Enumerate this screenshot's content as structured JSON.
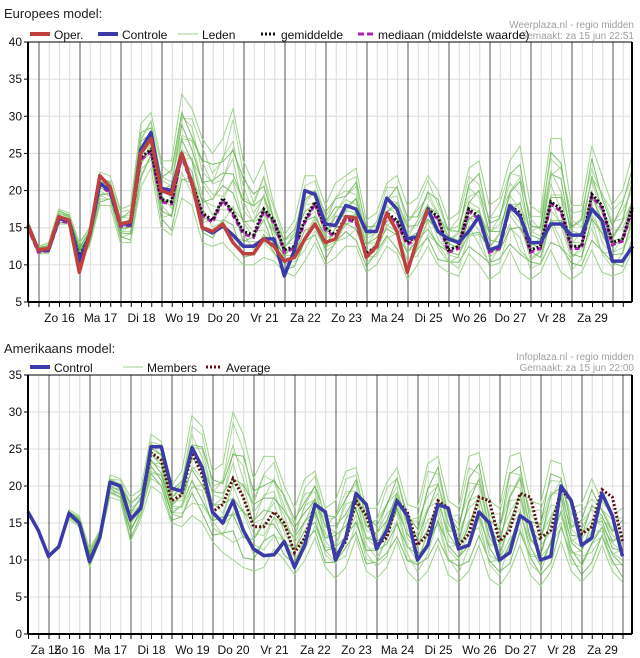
{
  "chart_data": [
    {
      "type": "line",
      "title": "Europees model:",
      "source": "Weerplaza.nl - regio midden",
      "made": "Gemaakt: za 15 jun 22:51",
      "ylim": [
        5,
        40
      ],
      "yticks": [
        5,
        10,
        15,
        20,
        25,
        30,
        35,
        40
      ],
      "xlabels": [
        "Zo 16",
        "Ma 17",
        "Di 18",
        "Wo 19",
        "Do 20",
        "Vr 21",
        "Za 22",
        "Zo 23",
        "Ma 24",
        "Di 25",
        "Wo 26",
        "Do 27",
        "Vr 28",
        "Za 29"
      ],
      "x_step_hours": 6,
      "grid": true,
      "legend": [
        {
          "name": "Oper.",
          "color": "#c04040",
          "style": "solid"
        },
        {
          "name": "Controle",
          "color": "#3a3aa8",
          "style": "solid"
        },
        {
          "name": "Leden",
          "color": "#9ecf8a",
          "style": "thin"
        },
        {
          "name": "gemiddelde",
          "color": "#111111",
          "style": "dotted"
        },
        {
          "name": "mediaan (middelste waarde)",
          "color": "#b020b0",
          "style": "dashed"
        }
      ],
      "series": [
        {
          "name": "Leden",
          "color": "#5fb040",
          "band": true,
          "low": [
            14.5,
            11.5,
            11.5,
            15.5,
            15.5,
            10.5,
            12.5,
            18,
            18,
            13,
            13,
            20.5,
            23,
            15,
            14,
            19,
            18,
            13,
            12.5,
            13,
            11.5,
            10,
            10,
            11,
            10.5,
            9,
            8.5,
            10.5,
            13,
            10,
            11,
            12.5,
            12.5,
            9,
            10,
            12.5,
            11.5,
            8,
            10,
            12.5,
            10,
            9,
            8.5,
            11.5,
            10,
            8,
            9,
            12,
            9,
            8,
            9,
            12,
            9,
            8,
            9,
            12,
            9,
            8.5,
            9,
            12
          ],
          "high": [
            16,
            12.5,
            13,
            17.5,
            17,
            13,
            15,
            22.5,
            22,
            17.5,
            18,
            29,
            30.5,
            24,
            24,
            33,
            31,
            27,
            25,
            27,
            31,
            24,
            21,
            24,
            18,
            14,
            16,
            22,
            22,
            18,
            21,
            22,
            23,
            16,
            17,
            21,
            22,
            18,
            19,
            22,
            20,
            16,
            17,
            23,
            24,
            18,
            19,
            24,
            26,
            18,
            17,
            27,
            27,
            18,
            18,
            26,
            22,
            18,
            20,
            25
          ]
        },
        {
          "name": "gemiddelde",
          "color": "#111111",
          "values": [
            15.3,
            12,
            12.2,
            16.2,
            16,
            11,
            14,
            21,
            20,
            15.5,
            15.6,
            24.5,
            25.5,
            18.8,
            18.5,
            25,
            21,
            17,
            16,
            19,
            17,
            14.5,
            14,
            17.5,
            16,
            12,
            12.5,
            16,
            18.5,
            15,
            14,
            16.5,
            16,
            11.5,
            12.5,
            17,
            16,
            13,
            14,
            17.5,
            16.5,
            12,
            12.5,
            17.5,
            16.5,
            12,
            12.5,
            18,
            17,
            12,
            12.5,
            18.5,
            17.5,
            12.5,
            12.5,
            19.5,
            18,
            13,
            13.5,
            18
          ]
        },
        {
          "name": "Controle",
          "color": "#3a3aa8",
          "values": [
            15.3,
            12,
            12,
            16.2,
            16,
            10.5,
            14,
            21,
            20,
            15.5,
            15.5,
            25.5,
            27.8,
            20.3,
            20,
            25,
            21,
            15,
            14.3,
            15.2,
            14,
            12.5,
            12.5,
            13.5,
            13.5,
            8.5,
            12,
            20,
            19.5,
            15.5,
            15.3,
            18,
            17.5,
            14.5,
            14.5,
            19,
            17.5,
            13.5,
            13.8,
            17.5,
            14.5,
            13.5,
            13,
            14.5,
            16.5,
            12,
            12.5,
            18,
            16.5,
            13,
            13,
            15.5,
            15.5,
            14,
            14,
            17.5,
            16,
            10.5,
            10.5,
            12.5
          ]
        },
        {
          "name": "Oper.",
          "color": "#c04040",
          "values": [
            15.3,
            12,
            12.2,
            16.5,
            16,
            9,
            14,
            22,
            20.5,
            15.5,
            15.8,
            25,
            27,
            20,
            19.5,
            25,
            21,
            15,
            14.5,
            15.5,
            13,
            11.5,
            11.5,
            13.5,
            12.5,
            10.5,
            11,
            13.5,
            15.5,
            13,
            13.5,
            16.5,
            16.3,
            11,
            12.5,
            17,
            14.5,
            9,
            13.5,
            17.5
          ]
        }
      ]
    },
    {
      "type": "line",
      "title": "Amerikaans model:",
      "source": "Infoplaza.nl - regio midden",
      "made": "Gemaakt: za 15 jun 22:00",
      "ylim": [
        0,
        35
      ],
      "yticks": [
        0,
        5,
        10,
        15,
        20,
        25,
        30,
        35
      ],
      "xlabels": [
        "Za 15",
        "Zo 16",
        "Ma 17",
        "Di 18",
        "Wo 19",
        "Do 20",
        "Vr 21",
        "Za 22",
        "Zo 23",
        "Ma 24",
        "Di 25",
        "Wo 26",
        "Do 27",
        "Vr 28",
        "Za 29"
      ],
      "x_step_hours": 6,
      "grid": true,
      "legend": [
        {
          "name": "Control",
          "color": "#3a3aa8",
          "style": "solid"
        },
        {
          "name": "Members",
          "color": "#9ecf8a",
          "style": "thin"
        },
        {
          "name": "Average",
          "color": "#5a1010",
          "style": "dotted"
        }
      ],
      "series": [
        {
          "name": "Members",
          "color": "#5fb040",
          "band": true,
          "low": [
            16.5,
            14,
            10.5,
            11.8,
            15.5,
            14.5,
            9,
            12.5,
            18.5,
            18,
            12.5,
            15.5,
            20,
            19,
            15,
            14.5,
            16,
            15,
            12.5,
            11,
            10,
            9,
            8.5,
            9,
            11.5,
            10,
            8,
            10,
            13,
            9,
            7.5,
            9,
            13,
            8.5,
            7.5,
            9,
            12.5,
            8.5,
            7,
            8.5,
            12,
            8,
            7,
            8.5,
            12,
            7.5,
            6.5,
            8.5,
            12,
            8,
            6.5,
            8.5,
            12.5,
            8.5,
            7,
            8.5,
            12,
            8.5,
            7
          ],
          "high": [
            16.5,
            14,
            10.5,
            11.8,
            16.8,
            16,
            11.5,
            14,
            21.5,
            21,
            18.5,
            19.5,
            27,
            26,
            20,
            22,
            29.5,
            28,
            22,
            23,
            30,
            27,
            21,
            24,
            24,
            20,
            17,
            21,
            22,
            17,
            18,
            22,
            22.5,
            17,
            17,
            20.5,
            22.5,
            17.5,
            17,
            23,
            24,
            18,
            17,
            24,
            24.5,
            18,
            17,
            24,
            24.5,
            18,
            17.5,
            23.5,
            23,
            17,
            17.5,
            21,
            18,
            16,
            17
          ]
        },
        {
          "name": "Average",
          "color": "#5a1010",
          "values": [
            16.5,
            14,
            10.5,
            11.8,
            16.3,
            15,
            10,
            13,
            20.5,
            20,
            15.5,
            17,
            24.5,
            23.5,
            18,
            18.8,
            24.5,
            21.5,
            16.5,
            17.5,
            21,
            18.5,
            14.5,
            14.5,
            16.5,
            15,
            11,
            13,
            17.5,
            16.5,
            10.5,
            12.5,
            18,
            16,
            12,
            13,
            18,
            16.5,
            12,
            13.5,
            18,
            17,
            12,
            13.5,
            18.5,
            18,
            12.5,
            14,
            19,
            18.5,
            13,
            14,
            19.5,
            18,
            13.5,
            14.5,
            19.5,
            18.5,
            12.5
          ]
        },
        {
          "name": "Control",
          "color": "#3a3aa8",
          "values": [
            16.5,
            14,
            10.5,
            11.8,
            16.3,
            15,
            9.8,
            13,
            20.5,
            20,
            15.5,
            17,
            25.3,
            25.3,
            19.7,
            19.3,
            25.2,
            22.5,
            16.5,
            15,
            18,
            14,
            11.5,
            10.6,
            10.7,
            12.5,
            9,
            12,
            17.5,
            16.5,
            10,
            13,
            19,
            17.5,
            11.5,
            14,
            18,
            16,
            10,
            12,
            17.5,
            17,
            11.5,
            12,
            16.5,
            15,
            10,
            11,
            16,
            15,
            10,
            10.5,
            20,
            18,
            12,
            13,
            19,
            16,
            10.5
          ]
        }
      ]
    }
  ]
}
